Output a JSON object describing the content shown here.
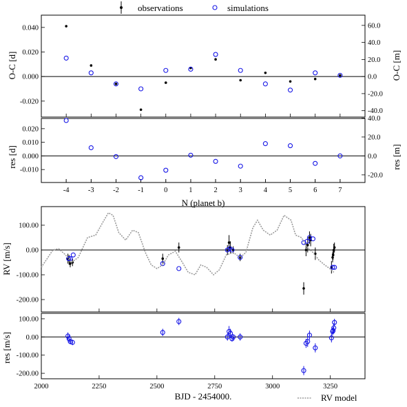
{
  "legend": {
    "observations": "observations",
    "simulations": "simulations",
    "rv_model": "RV model"
  },
  "chart_data": [
    {
      "id": "oc",
      "type": "scatter",
      "xlabel": "",
      "ylabel": "O-C [d]",
      "ylabel_right": "O-C [m]",
      "xlim": [
        -5,
        8
      ],
      "ylim": [
        -0.033,
        0.05
      ],
      "yticks": [
        -0.02,
        0.0,
        0.02,
        0.04
      ],
      "ytick_labels": [
        "-0.020",
        "0.000",
        "0.020",
        "0.040"
      ],
      "right_ticks_m": [
        -40,
        -20,
        0,
        20,
        40,
        60
      ],
      "right_tick_labels": [
        "-40.0",
        "-20.0",
        "0.0",
        "20.0",
        "40.0",
        "60.0"
      ],
      "minutes_per_day": 1440,
      "series": [
        {
          "name": "observations",
          "x": [
            -4,
            -3,
            -2,
            -1,
            0,
            1,
            2,
            3,
            4,
            5,
            6,
            7
          ],
          "y": [
            0.041,
            0.009,
            -0.006,
            -0.027,
            -0.005,
            0.007,
            0.014,
            -0.003,
            0.003,
            -0.004,
            -0.002,
            0.001
          ]
        },
        {
          "name": "simulations",
          "x": [
            -4,
            -3,
            -2,
            -1,
            0,
            1,
            2,
            3,
            4,
            5,
            6,
            7
          ],
          "y": [
            0.015,
            0.003,
            -0.006,
            -0.01,
            0.005,
            0.006,
            0.018,
            0.005,
            -0.006,
            -0.011,
            0.003,
            0.001
          ]
        }
      ]
    },
    {
      "id": "res",
      "type": "scatter",
      "xlabel": "N (planet b)",
      "ylabel": "res [d]",
      "ylabel_right": "res [m]",
      "xlim": [
        -5,
        8
      ],
      "xticks": [
        -4,
        -3,
        -2,
        -1,
        0,
        1,
        2,
        3,
        4,
        5,
        6,
        7
      ],
      "xtick_labels": [
        "-4",
        "-3",
        "-2",
        "-1",
        "0",
        "1",
        "2",
        "3",
        "4",
        "5",
        "6",
        "7"
      ],
      "ylim": [
        -0.0195,
        0.0275
      ],
      "yticks": [
        -0.01,
        0.0,
        0.01,
        0.02
      ],
      "ytick_labels": [
        "-0.010",
        "0.000",
        "0.010",
        "0.020"
      ],
      "right_ticks_m": [
        -20,
        0,
        20,
        40
      ],
      "right_tick_labels": [
        "-20.0",
        "0.0",
        "20.0",
        "40.0"
      ],
      "minutes_per_day": 1440,
      "series": [
        {
          "name": "simulations",
          "x": [
            -4,
            -3,
            -2,
            -1,
            0,
            1,
            2,
            3,
            4,
            5,
            6,
            7
          ],
          "y": [
            0.026,
            0.006,
            -0.0005,
            -0.016,
            -0.0105,
            0.0005,
            -0.004,
            -0.0075,
            0.009,
            0.0075,
            -0.0055,
            0.0
          ]
        }
      ]
    },
    {
      "id": "rv",
      "type": "scatter",
      "xlabel": "",
      "ylabel": "RV [m/s]",
      "xlim": [
        2000,
        3400
      ],
      "ylim": [
        -250,
        175
      ],
      "yticks": [
        -200,
        -100,
        0,
        100
      ],
      "ytick_labels": [
        "-200.00",
        "-100.00",
        "0.00",
        "100.00"
      ],
      "series": [
        {
          "name": "observations",
          "x": [
            2115,
            2120,
            2125,
            2135,
            2525,
            2595,
            2805,
            2812,
            2818,
            2830,
            2860,
            3135,
            3145,
            3152,
            3160,
            3165,
            3185,
            3255,
            3260,
            3262,
            3265,
            3268
          ],
          "y": [
            -35,
            -40,
            -55,
            -50,
            -35,
            10,
            0,
            30,
            10,
            0,
            -30,
            -155,
            0,
            20,
            50,
            40,
            -15,
            -70,
            -30,
            -20,
            0,
            10
          ],
          "err": [
            20,
            20,
            15,
            15,
            20,
            20,
            20,
            30,
            25,
            15,
            15,
            25,
            25,
            30,
            25,
            25,
            25,
            25,
            20,
            20,
            25,
            20
          ]
        },
        {
          "name": "simulations",
          "x": [
            2118,
            2125,
            2138,
            2525,
            2595,
            2805,
            2815,
            2825,
            2860,
            3135,
            3150,
            3160,
            3175,
            3260,
            3268
          ],
          "y": [
            -35,
            -35,
            -20,
            -55,
            -75,
            0,
            5,
            0,
            -30,
            30,
            35,
            50,
            45,
            -70,
            -70
          ]
        },
        {
          "name": "RV model",
          "x": [
            2000,
            2050,
            2075,
            2105,
            2130,
            2160,
            2200,
            2235,
            2265,
            2290,
            2310,
            2335,
            2365,
            2395,
            2420,
            2450,
            2475,
            2500,
            2525,
            2550,
            2580,
            2610,
            2635,
            2665,
            2690,
            2715,
            2745,
            2770,
            2800,
            2830,
            2860,
            2885,
            2915,
            2935,
            2960,
            2990,
            3020,
            3050,
            3080,
            3100,
            3125,
            3150,
            3175,
            3200,
            3225,
            3255,
            3265
          ],
          "y": [
            -70,
            0,
            5,
            -20,
            -50,
            -30,
            50,
            60,
            110,
            150,
            140,
            70,
            40,
            80,
            70,
            -10,
            -60,
            -75,
            -60,
            -20,
            -5,
            -50,
            -90,
            -100,
            -60,
            -70,
            -100,
            -80,
            -20,
            -10,
            -30,
            -10,
            90,
            120,
            80,
            60,
            80,
            140,
            120,
            60,
            50,
            10,
            -10,
            -40,
            -60,
            -80,
            -90
          ]
        }
      ]
    },
    {
      "id": "rvres",
      "type": "scatter",
      "xlabel": "BJD - 2454000.",
      "ylabel": "res [m/s]",
      "xlim": [
        2000,
        3400
      ],
      "xticks": [
        2000,
        2250,
        2500,
        2750,
        3000,
        3250
      ],
      "xtick_labels": [
        "2000",
        "2250",
        "2500",
        "2750",
        "3000",
        "3250"
      ],
      "ylim": [
        -230,
        130
      ],
      "yticks": [
        -200,
        -100,
        0,
        100
      ],
      "ytick_labels": [
        "-200.00",
        "-100.00",
        "0.00",
        "100.00"
      ],
      "series": [
        {
          "name": "simulations",
          "x": [
            2115,
            2120,
            2125,
            2135,
            2525,
            2595,
            2805,
            2812,
            2818,
            2825,
            2830,
            2860,
            3135,
            3145,
            3152,
            3160,
            3185,
            3255,
            3260,
            3262,
            3265,
            3268
          ],
          "y": [
            5,
            -10,
            -25,
            -30,
            25,
            85,
            0,
            30,
            20,
            -10,
            0,
            0,
            -185,
            -35,
            -25,
            10,
            -60,
            -5,
            30,
            35,
            50,
            80
          ],
          "err": [
            20,
            20,
            15,
            15,
            20,
            20,
            20,
            30,
            25,
            15,
            15,
            20,
            25,
            25,
            30,
            25,
            25,
            25,
            20,
            20,
            25,
            20
          ]
        }
      ]
    }
  ]
}
